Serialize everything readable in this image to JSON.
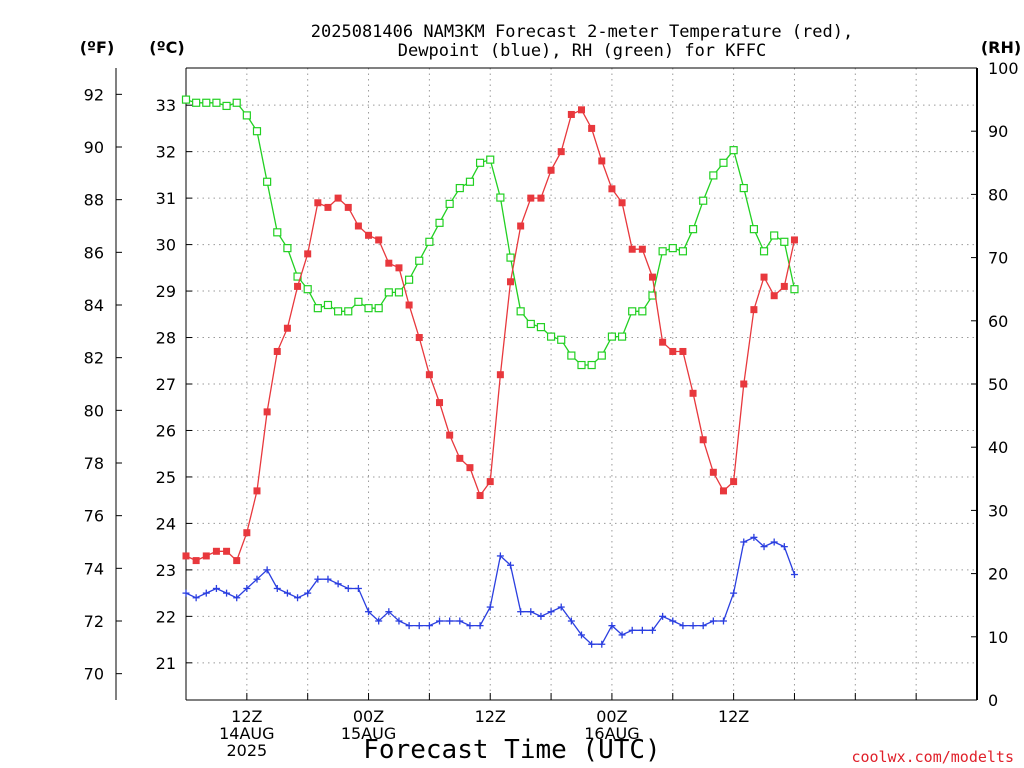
{
  "chart_data": {
    "type": "line",
    "title": [
      "2025081406 NAM3KM Forecast 2-meter Temperature (red),",
      "Dewpoint (blue), RH (green) for KFFC"
    ],
    "xlabel": "Forecast Time (UTC)",
    "credit": "coolwx.com/modelts",
    "units": {
      "fahrenheit": "(ºF)",
      "celsius": "(ºC)",
      "rh": "(RH)"
    },
    "grid": true,
    "hours": [
      6,
      84
    ],
    "x_ticks": [
      {
        "hour": 12,
        "lines": [
          "12Z",
          "14AUG",
          "2025"
        ]
      },
      {
        "hour": 24,
        "lines": [
          "00Z",
          "15AUG"
        ]
      },
      {
        "hour": 36,
        "lines": [
          "12Z"
        ]
      },
      {
        "hour": 48,
        "lines": [
          "00Z",
          "16AUG"
        ]
      },
      {
        "hour": 60,
        "lines": [
          "12Z"
        ]
      }
    ],
    "temp_axis_c": {
      "range": [
        20.2,
        33.8
      ],
      "ticks": [
        21,
        22,
        23,
        24,
        25,
        26,
        27,
        28,
        29,
        30,
        31,
        32,
        33
      ]
    },
    "temp_axis_f": {
      "range": [
        69,
        93
      ],
      "ticks": [
        70,
        72,
        74,
        76,
        78,
        80,
        82,
        84,
        86,
        88,
        90,
        92
      ]
    },
    "rh_axis": {
      "range": [
        0,
        100
      ],
      "ticks": [
        0,
        10,
        20,
        30,
        40,
        50,
        60,
        70,
        80,
        90,
        100
      ]
    },
    "colors": {
      "temperature": "#e8383d",
      "dewpoint": "#2b3fe0",
      "rh": "#22d022"
    },
    "series": [
      {
        "name": "Temperature (red)",
        "unit": "C",
        "hour_start": 6,
        "values": [
          23.3,
          23.2,
          23.3,
          23.4,
          23.4,
          23.2,
          23.8,
          24.7,
          26.4,
          27.7,
          28.2,
          29.1,
          29.8,
          30.9,
          30.8,
          31.0,
          30.8,
          30.4,
          30.2,
          30.1,
          29.6,
          29.5,
          28.7,
          28.0,
          27.2,
          26.6,
          25.9,
          25.4,
          25.2,
          24.6,
          24.9,
          27.2,
          29.2,
          30.4,
          31.0,
          31.0,
          31.6,
          32.0,
          32.8,
          32.9,
          32.5,
          31.8,
          31.2,
          30.9,
          29.9,
          29.9,
          29.3,
          27.9,
          27.7,
          27.7,
          26.8,
          25.8,
          25.1,
          24.7,
          24.9,
          27.0,
          28.6,
          29.3,
          28.9,
          29.1,
          30.1
        ]
      },
      {
        "name": "Dewpoint (blue)",
        "unit": "C",
        "hour_start": 6,
        "values": [
          22.5,
          22.4,
          22.5,
          22.6,
          22.5,
          22.4,
          22.6,
          22.8,
          23.0,
          22.6,
          22.5,
          22.4,
          22.5,
          22.8,
          22.8,
          22.7,
          22.6,
          22.6,
          22.1,
          21.9,
          22.1,
          21.9,
          21.8,
          21.8,
          21.8,
          21.9,
          21.9,
          21.9,
          21.8,
          21.8,
          22.2,
          23.3,
          23.1,
          22.1,
          22.1,
          22.0,
          22.1,
          22.2,
          21.9,
          21.6,
          21.4,
          21.4,
          21.8,
          21.6,
          21.7,
          21.7,
          21.7,
          22.0,
          21.9,
          21.8,
          21.8,
          21.8,
          21.9,
          21.9,
          22.5,
          23.6,
          23.7,
          23.5,
          23.6,
          23.5,
          22.9
        ]
      },
      {
        "name": "RH (green)",
        "unit": "%",
        "hour_start": 6,
        "values": [
          95,
          94.5,
          94.5,
          94.5,
          94,
          94.5,
          92.5,
          90,
          82,
          74,
          71.5,
          67,
          65,
          62,
          62.5,
          61.5,
          61.5,
          63,
          62,
          62,
          64.5,
          64.5,
          66.5,
          69.5,
          72.5,
          75.5,
          78.5,
          81,
          82,
          85,
          85.5,
          79.5,
          70,
          61.5,
          59.5,
          59,
          57.5,
          57,
          54.5,
          53,
          53,
          54.5,
          57.5,
          57.5,
          61.5,
          61.5,
          64,
          71,
          71.5,
          71,
          74.5,
          79,
          83,
          85,
          87,
          81,
          74.5,
          71,
          73.5,
          72.5,
          65
        ]
      }
    ]
  }
}
